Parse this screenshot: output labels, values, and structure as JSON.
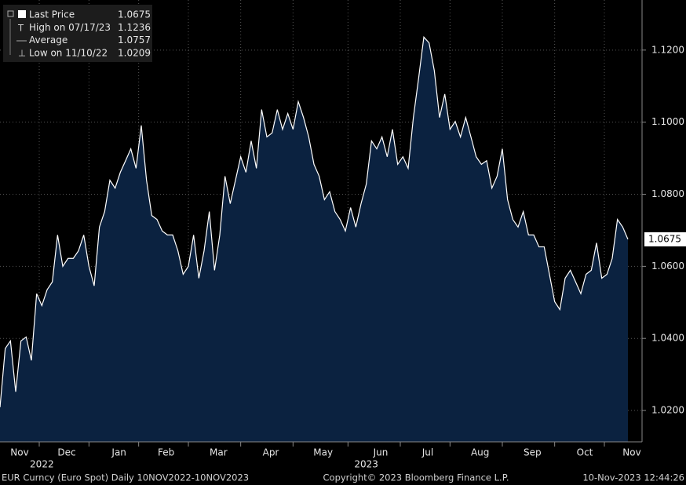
{
  "chart_data": {
    "type": "area",
    "series": [
      {
        "name": "Last Price",
        "color": "#ffffff",
        "fill": "#0b2240",
        "values": [
          1.0209,
          1.0372,
          1.0393,
          1.0252,
          1.0393,
          1.0404,
          1.0339,
          1.0524,
          1.0491,
          1.0535,
          1.0557,
          1.0687,
          1.06,
          1.0622,
          1.0622,
          1.0643,
          1.0687,
          1.06,
          1.0546,
          1.0709,
          1.0752,
          1.0839,
          1.0817,
          1.0861,
          1.0893,
          1.0926,
          1.0872,
          1.0991,
          1.0839,
          1.0741,
          1.073,
          1.0698,
          1.0687,
          1.0687,
          1.0643,
          1.0578,
          1.06,
          1.0687,
          1.0567,
          1.0643,
          1.0752,
          1.0589,
          1.0687,
          1.085,
          1.0774,
          1.0839,
          1.0904,
          1.0861,
          1.0948,
          1.0872,
          1.1035,
          1.0959,
          1.097,
          1.1035,
          1.098,
          1.1024,
          1.098,
          1.1057,
          1.1013,
          1.0959,
          1.0883,
          1.085,
          1.0785,
          1.0807,
          1.0752,
          1.073,
          1.0698,
          1.0763,
          1.0709,
          1.0774,
          1.0828,
          1.0948,
          1.0926,
          1.0959,
          1.0904,
          1.098,
          1.0883,
          1.0904,
          1.0872,
          1.1013,
          1.1122,
          1.1236,
          1.122,
          1.1143,
          1.1013,
          1.1078,
          1.098,
          1.1002,
          1.0959,
          1.1013,
          1.0959,
          1.0904,
          1.0883,
          1.0893,
          1.0817,
          1.085,
          1.0926,
          1.0785,
          1.073,
          1.0709,
          1.0752,
          1.0687,
          1.0687,
          1.0654,
          1.0654,
          1.0578,
          1.0502,
          1.048,
          1.0567,
          1.0589,
          1.0557,
          1.0524,
          1.0578,
          1.0589,
          1.0665,
          1.0567,
          1.0578,
          1.0622,
          1.073,
          1.0709,
          1.0675
        ]
      }
    ],
    "categories": [
      null,
      null,
      null,
      "Nov",
      null,
      null,
      null,
      null,
      null,
      null,
      null,
      null,
      "Dec",
      null,
      null,
      null,
      null,
      null,
      null,
      null,
      null,
      null,
      "Jan",
      null,
      null,
      null,
      null,
      null,
      null,
      null,
      null,
      "Feb",
      null,
      null,
      null,
      null,
      null,
      null,
      null,
      null,
      null,
      "Mar",
      null,
      null,
      null,
      null,
      null,
      null,
      null,
      null,
      null,
      "Apr",
      null,
      null,
      null,
      null,
      null,
      null,
      null,
      null,
      null,
      "May",
      null,
      null,
      null,
      null,
      null,
      null,
      null,
      null,
      null,
      null,
      "Jun",
      null,
      null,
      null,
      null,
      null,
      null,
      null,
      null,
      "Jul",
      null,
      null,
      null,
      null,
      null,
      null,
      null,
      null,
      null,
      "Aug",
      null,
      null,
      null,
      null,
      null,
      null,
      null,
      null,
      null,
      "Sep",
      null,
      null,
      null,
      null,
      null,
      null,
      null,
      null,
      null,
      "Oct",
      null,
      null,
      null,
      null,
      null,
      null,
      null,
      null,
      "Nov"
    ],
    "year_labels": [
      null,
      null,
      null,
      null,
      null,
      null,
      null,
      null,
      "2022",
      null,
      null,
      null,
      null,
      null,
      null,
      null,
      null,
      null,
      null,
      null,
      null,
      null,
      null,
      null,
      null,
      null,
      null,
      null,
      null,
      null,
      null,
      null,
      null,
      null,
      null,
      null,
      null,
      null,
      null,
      null,
      null,
      null,
      null,
      null,
      null,
      null,
      null,
      null,
      null,
      null,
      null,
      null,
      null,
      null,
      null,
      null,
      null,
      null,
      null,
      null,
      null,
      null,
      null,
      null,
      null,
      null,
      null,
      null,
      null,
      null,
      "2023",
      null,
      null,
      null,
      null,
      null,
      null,
      null,
      null,
      null,
      null,
      null,
      null,
      null,
      null,
      null,
      null,
      null,
      null,
      null,
      null,
      null,
      null,
      null,
      null,
      null,
      null,
      null,
      null,
      null,
      null,
      null,
      null,
      null,
      null,
      null,
      null,
      null,
      null,
      null,
      null,
      null,
      null,
      null,
      null,
      null,
      null,
      null,
      null,
      null,
      null
    ],
    "ylim": [
      1.0113,
      1.1339
    ],
    "yticks": [
      {
        "value": 1.02,
        "label": "1.0200"
      },
      {
        "value": 1.04,
        "label": "1.0400"
      },
      {
        "value": 1.06,
        "label": "1.0600"
      },
      {
        "value": 1.08,
        "label": "1.0800"
      },
      {
        "value": 1.1,
        "label": "1.1000"
      },
      {
        "value": 1.12,
        "label": "1.1200"
      }
    ],
    "grid": true,
    "legend": [
      {
        "label": "Last Price",
        "value": 1.0675
      },
      {
        "label": "High on 07/17/23",
        "value": 1.1236
      },
      {
        "label": "Average",
        "value": 1.0757
      },
      {
        "label": "Low on 11/10/22",
        "value": 1.0209
      }
    ]
  },
  "footer": {
    "security": "EUR Curncy (Euro Spot)  Daily 10NOV2022-10NOV2023",
    "copyright": "Copyright© 2023 Bloomberg Finance L.P.",
    "timestamp": "10-Nov-2023 12:44:26"
  }
}
